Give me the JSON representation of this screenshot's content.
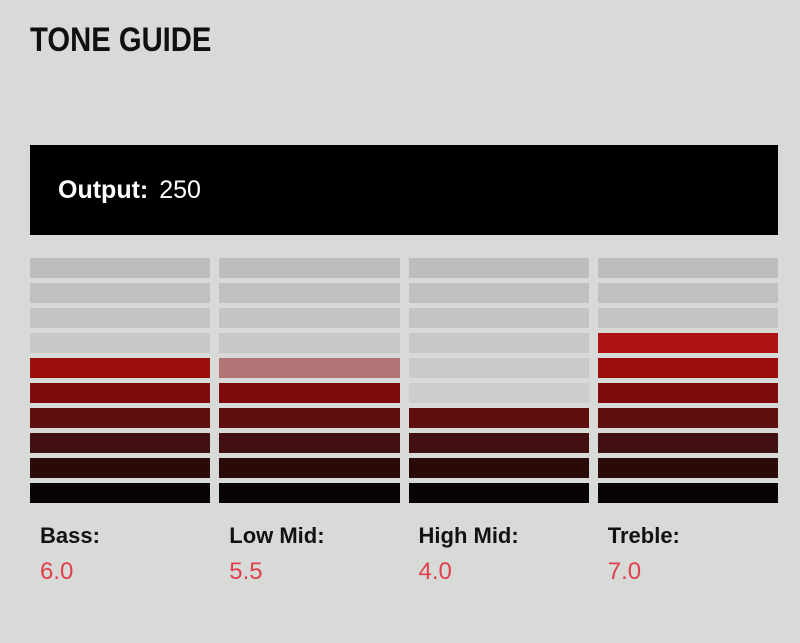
{
  "title": "TONE GUIDE",
  "output": {
    "label": "Output:",
    "value": "250"
  },
  "channels": [
    {
      "label": "Bass:",
      "value": "6.0",
      "segments_lit": 6,
      "half_top": false
    },
    {
      "label": "Low Mid:",
      "value": "5.5",
      "segments_lit": 6,
      "half_top": true
    },
    {
      "label": "High Mid:",
      "value": "4.0",
      "segments_lit": 4,
      "half_top": false
    },
    {
      "label": "Treble:",
      "value": "7.0",
      "segments_lit": 7,
      "half_top": false
    }
  ],
  "meter": {
    "rows": 10,
    "lit_colors": [
      "#d81b1b",
      "#cc1818",
      "#c01616",
      "#b11313",
      "#9c0d0d",
      "#7f0b0b",
      "#5f0e0e",
      "#421010",
      "#2a0909",
      "#080404"
    ],
    "unlit_colors": [
      "#bcbebc",
      "#bfc1bf",
      "#c3c5c3",
      "#c6c8c6",
      "#c9cbc9",
      "#cccecc",
      "#ced0ce",
      "#d0d2d0",
      "#d1d3d1",
      "#d2d4d2"
    ],
    "half_top_color": "#b07474"
  },
  "colors": {
    "background": "#d7dad7",
    "output_panel": "#000000",
    "output_text": "#ffffff",
    "label_text": "#121212",
    "value_text": "#e0404e"
  },
  "chart_data": {
    "type": "bar",
    "title": "TONE GUIDE",
    "categories": [
      "Bass",
      "Low Mid",
      "High Mid",
      "Treble"
    ],
    "values": [
      6.0,
      5.5,
      4.0,
      7.0
    ],
    "ylim": [
      0,
      10
    ],
    "ylabel": "",
    "xlabel": "",
    "annotations": [
      "Output: 250"
    ],
    "legend_position": "none",
    "grid": false
  }
}
